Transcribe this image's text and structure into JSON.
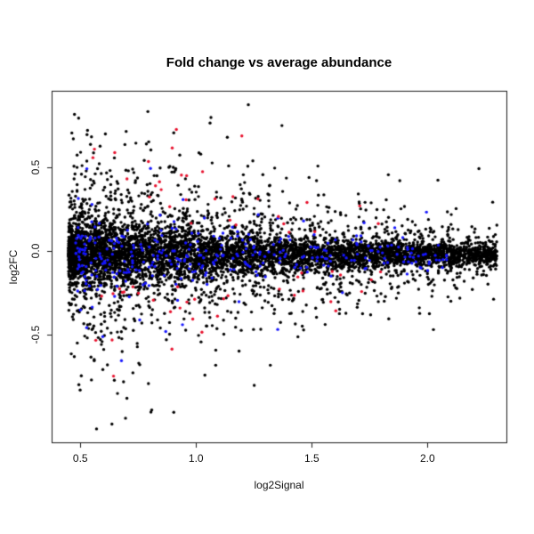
{
  "figure": {
    "background": "#ffffff"
  },
  "chart_data": {
    "type": "scatter",
    "title": "Fold change vs average abundance",
    "xlabel": "log2Signal",
    "ylabel": "log2FC",
    "xlim": [
      0.376,
      2.341
    ],
    "ylim": [
      -1.145,
      0.959
    ],
    "x_ticks": [
      0.5,
      1.0,
      1.5,
      2.0
    ],
    "x_tick_labels": [
      "0.5",
      "1.0",
      "1.5",
      "2.0"
    ],
    "y_ticks": [
      0.5,
      0.0,
      -0.5
    ],
    "y_tick_labels": [
      "0.5",
      "0.0",
      "-0.5"
    ],
    "grid": false,
    "legend": "none",
    "axis_color": "#1a1a1a",
    "point_radius": 1.7,
    "description": "MA plot of ~6900 points: log2 fold change vs log2 average signal. Funnel-shaped cloud centered on log2FC=0, widest (±0.9) near log2Signal=0.7-1.0, narrowing to ±0.05 at log2Signal=2.3. Blue highlighted points cluster near log2FC=0; red highlighted points lie in the high-|log2FC| fringes (|log2FC|~0.2-1.05).",
    "seed": 20240817,
    "spread_model": {
      "peak": 0.5,
      "left_x0": 0.42,
      "left_tau": 0.07,
      "right_rate": 0.85,
      "x0": 0.45,
      "y_clamp": [
        -1.07,
        0.91
      ]
    },
    "series": [
      {
        "name": "genes-black",
        "color": "#000000",
        "count": 6500,
        "x_min": 0.45,
        "x_span": 1.85,
        "x_power": 1.5,
        "y_offset": -0.02,
        "layers": [
          [
            0.7,
            0.25
          ],
          [
            0.22,
            0.7
          ],
          [
            0.08,
            1.4
          ]
        ],
        "exclude_center": 0
      },
      {
        "name": "highlight-blue",
        "color": "#1515ff",
        "count": 330,
        "x_min": 0.48,
        "x_span": 1.62,
        "x_power": 1.6,
        "y_offset": -0.02,
        "layers": [
          [
            0.8,
            0.3
          ],
          [
            0.2,
            0.8
          ]
        ],
        "exclude_center": 0
      },
      {
        "name": "highlight-red",
        "color": "#e8112d",
        "count": 64,
        "x_min": 0.55,
        "x_span": 1.25,
        "x_power": 1.2,
        "y_offset": 0,
        "layers": [
          [
            1.0,
            0.75
          ]
        ],
        "exclude_center": 0.5
      }
    ]
  }
}
